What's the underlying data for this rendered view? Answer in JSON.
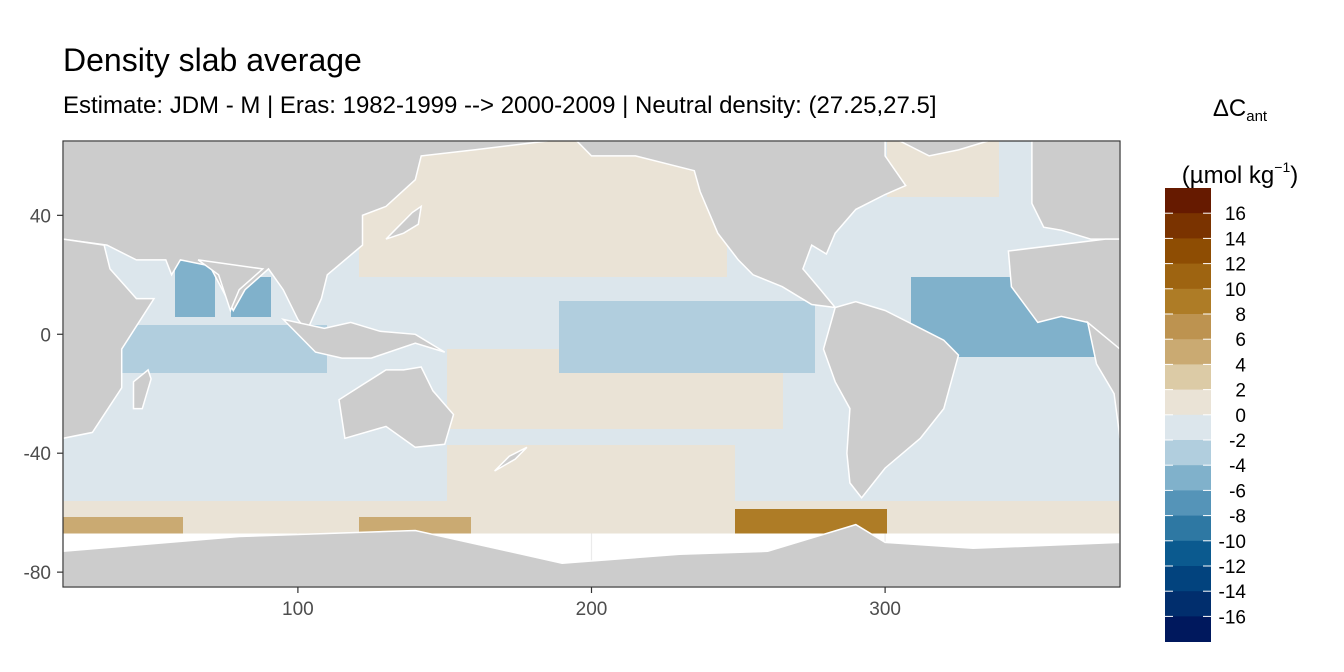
{
  "title": "Density slab average",
  "subtitle": "Estimate: JDM - M | Eras: 1982-1999 --> 2000-2009 | Neutral density: (27.25,27.5]",
  "legend": {
    "title_main": "ΔC",
    "title_sub": "ant",
    "title_units_pre": "(µmol kg",
    "title_units_sup": "−1",
    "title_units_post": ")",
    "labels": [
      "16",
      "14",
      "12",
      "10",
      "8",
      "6",
      "4",
      "2",
      "0",
      "-2",
      "-4",
      "-6",
      "-8",
      "-10",
      "-12",
      "-14",
      "-16"
    ],
    "colors": [
      "#661A00",
      "#7A3300",
      "#8E4D03",
      "#9E6411",
      "#AE7C26",
      "#BD9350",
      "#CAAA72",
      "#DCCBA6",
      "#EAE3D6",
      "#DCE6EC",
      "#B1CEDE",
      "#80B1CB",
      "#5594B8",
      "#2E78A3",
      "#0B5A8F",
      "#02437E",
      "#012E6D",
      "#00185D"
    ]
  },
  "chart_data": {
    "type": "heatmap",
    "title": "Density slab average",
    "subtitle": "Estimate: JDM - M | Eras: 1982-1999 --> 2000-2009 | Neutral density: (27.25,27.5]",
    "xlabel": "",
    "ylabel": "",
    "xlim": [
      20,
      380
    ],
    "ylim": [
      -85,
      65
    ],
    "x_ticks": [
      100,
      200,
      300
    ],
    "y_ticks": [
      40,
      0,
      -40,
      -80
    ],
    "grid": true,
    "legend_position": "right",
    "variable": "ΔCant (µmol kg−1)",
    "color_breaks": [
      18,
      16,
      14,
      12,
      10,
      8,
      6,
      4,
      2,
      0,
      -2,
      -4,
      -6,
      -8,
      -10,
      -12,
      -14,
      -16,
      -18
    ],
    "land_color": "#CCCCCC",
    "dominant_class": "0 to -2",
    "regions": [
      {
        "name": "North Pacific",
        "value_range": [
          0,
          2
        ]
      },
      {
        "name": "Equatorial Pacific",
        "value_range": [
          -4,
          -2
        ]
      },
      {
        "name": "South Pacific",
        "value_range": [
          0,
          2
        ]
      },
      {
        "name": "Arabian Sea",
        "value_range": [
          -6,
          -4
        ]
      },
      {
        "name": "Tropical Atlantic",
        "value_range": [
          -6,
          -4
        ]
      },
      {
        "name": "Southern Ocean near Antarctica",
        "value_range": [
          2,
          10
        ]
      },
      {
        "name": "Weddell/Bellingshausen Sea",
        "value_range": [
          6,
          12
        ]
      }
    ]
  }
}
